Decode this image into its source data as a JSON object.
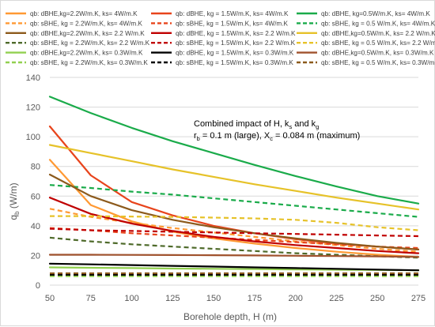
{
  "chart_data": {
    "type": "line",
    "xlabel": "Borehole depth, H (m)",
    "ylabel": "q_b (W/m)",
    "ylabel_main": "q",
    "ylabel_sub": "b",
    "ylabel_unit": " (W/m)",
    "xlim": [
      50,
      275
    ],
    "ylim": [
      0,
      140
    ],
    "xticks": [
      50,
      75,
      100,
      125,
      150,
      175,
      200,
      225,
      250,
      275
    ],
    "yticks": [
      0,
      20,
      40,
      60,
      80,
      100,
      120,
      140
    ],
    "grid": true,
    "legend_position": "top",
    "annotation": {
      "line1": "Combined impact of H, k",
      "line1_s": "s",
      "line1_mid": " and k",
      "line1_g": "g",
      "line2_r": "r",
      "line2_rsub": "b",
      "line2_mid": " = 0.1 m (large), X",
      "line2_xsub": "c",
      "line2_end": " = 0.084 m (maximum)"
    },
    "x": [
      50,
      75,
      100,
      125,
      150,
      175,
      200,
      225,
      250,
      275
    ],
    "series": [
      {
        "name": "qb: dBHE,kg=2.2W/m.K, ks= 4W/m.K",
        "color": "#ff9933",
        "dash": false,
        "values": [
          84.5,
          54,
          43,
          36,
          31.5,
          28,
          25,
          22.5,
          20.5,
          19
        ]
      },
      {
        "name": "qb: dBHE, kg = 1.5W/m.K, ks= 4W/m.K",
        "color": "#e8441c",
        "dash": false,
        "values": [
          107,
          74,
          56,
          47,
          40,
          35,
          31,
          28,
          26,
          24
        ]
      },
      {
        "name": "qb: dBHE, kg=0.5W/m.K, ks= 4W/m.K",
        "color": "#1aab4a",
        "dash": false,
        "values": [
          127,
          116,
          106,
          97,
          89,
          81,
          73.5,
          66.5,
          60,
          55
        ]
      },
      {
        "name": "qb: sBHE, kg = 2.2W/m.K, ks= 4W/m.K",
        "color": "#ff9933",
        "dash": true,
        "values": [
          51.5,
          46,
          42,
          38.5,
          35.5,
          32.5,
          29.5,
          27,
          24.5,
          22.5
        ]
      },
      {
        "name": "qb: sBHE, kg = 1.5W/m.K, ks= 4W/m.K",
        "color": "#e8441c",
        "dash": true,
        "values": [
          38.5,
          37,
          35,
          33.5,
          32,
          30.5,
          29,
          27.5,
          26,
          25
        ]
      },
      {
        "name": "qb: sBHE, kg = 0.5 W/m.K, ks= 4W/m.K",
        "color": "#1aab4a",
        "dash": true,
        "values": [
          67.5,
          65.5,
          63,
          61,
          58.5,
          56,
          53.5,
          51,
          48.5,
          46
        ]
      },
      {
        "name": "qb: dBHE,kg=2.2W/m.K, ks= 2.2 W/m.K",
        "color": "#8c5a1c",
        "dash": false,
        "values": [
          74.5,
          60,
          50.5,
          44,
          39,
          35,
          31.5,
          28.5,
          26,
          24
        ]
      },
      {
        "name": "qb: dBHE, kg = 1.5W/m.K, ks= 2.2 W/m.K",
        "color": "#c00000",
        "dash": false,
        "values": [
          59,
          48,
          41.5,
          36.5,
          32.5,
          29.5,
          27,
          25,
          23,
          21.5
        ]
      },
      {
        "name": "qb: dBHE,kg=0.5W/m.K, ks= 2.2 W/m.K",
        "color": "#e6c229",
        "dash": false,
        "values": [
          94.5,
          89,
          83.5,
          78,
          73,
          68,
          63.5,
          59,
          55,
          51
        ]
      },
      {
        "name": "qb: sBHE, kg = 2.2W/m.K, ks= 2.2 W/m.K",
        "color": "#4e6a2a",
        "dash": true,
        "values": [
          32,
          29.5,
          27.5,
          26,
          24.5,
          23,
          21.5,
          20.5,
          19.5,
          18.5
        ]
      },
      {
        "name": "qb: sBHE, kg = 1.5W/m.K, ks= 2.2 W/m.K",
        "color": "#c00000",
        "dash": true,
        "values": [
          38,
          37,
          36.5,
          36,
          35.5,
          35,
          34.5,
          34,
          33.5,
          33
        ]
      },
      {
        "name": "qb: sBHE, kg = 0.5 W/m.K, ks= 2.2 W/m.K",
        "color": "#e6c229",
        "dash": true,
        "values": [
          46.5,
          46.5,
          46.2,
          46,
          45.5,
          45,
          44,
          42,
          39,
          37
        ]
      },
      {
        "name": "qb: dBHE,kg=2.2W/m.K, ks= 0.3W/m.K",
        "color": "#92d050",
        "dash": false,
        "values": [
          12,
          11.7,
          11.5,
          11.2,
          11,
          10.8,
          10.6,
          10.4,
          10.2,
          10
        ]
      },
      {
        "name": "qb: dBHE, kg = 1.5W/m.K, ks= 0.3W/m.K",
        "color": "#000000",
        "dash": false,
        "values": [
          14.5,
          14,
          13.5,
          13,
          12.5,
          12,
          11.5,
          11,
          10.5,
          10
        ]
      },
      {
        "name": "qb: dBHE,kg=0.5W/m.K, ks= 0.3W/m.K",
        "color": "#a0522d",
        "dash": false,
        "values": [
          20.5,
          20.5,
          20.4,
          20.3,
          20.2,
          20,
          19.8,
          19.6,
          19.4,
          19
        ]
      },
      {
        "name": "qb: sBHE, kg = 2.2W/m.K, ks= 0.3W/m.K",
        "color": "#92d050",
        "dash": true,
        "values": [
          6,
          6,
          6,
          6,
          6,
          6,
          6,
          6,
          6,
          6
        ]
      },
      {
        "name": "qb: sBHE, kg = 1.5W/m.K, ks= 0.3W/m.K",
        "color": "#000000",
        "dash": true,
        "values": [
          7,
          7,
          7,
          7,
          7,
          7,
          7,
          7,
          7,
          7
        ]
      },
      {
        "name": "qb: sBHE, kg = 0.5 W/m.K, ks= 0.3W/m.K",
        "color": "#8c5a1c",
        "dash": true,
        "values": [
          8,
          8,
          8,
          8,
          8,
          8,
          8,
          8,
          8,
          8
        ]
      }
    ]
  }
}
